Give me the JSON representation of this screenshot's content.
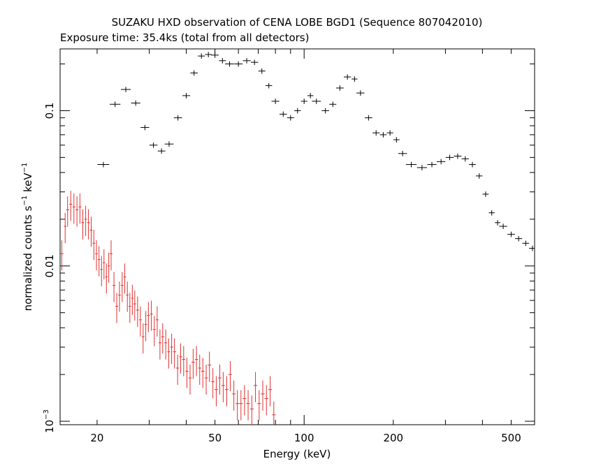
{
  "chart_data": {
    "type": "scatter",
    "title": "SUZAKU HXD observation of CENA LOBE BGD1 (Sequence 807042010)",
    "subtitle": "Exposure time: 35.4ks (total from all detectors)",
    "xlabel": "Energy (keV)",
    "ylabel_main": "normalized counts s",
    "ylabel_sup1": "−1",
    "ylabel_mid": " keV",
    "ylabel_sup2": "−1",
    "x_scale": "log",
    "y_scale": "log",
    "xlim": [
      15,
      600
    ],
    "ylim": [
      0.00095,
      0.25
    ],
    "x_ticks": [
      {
        "value": 20,
        "label": "20"
      },
      {
        "value": 50,
        "label": "50"
      },
      {
        "value": 100,
        "label": "100"
      },
      {
        "value": 200,
        "label": "200"
      },
      {
        "value": 500,
        "label": "500"
      }
    ],
    "y_ticks": [
      {
        "value": 0.001,
        "base": "10",
        "exp": "−3"
      },
      {
        "value": 0.01,
        "label": "0.01"
      },
      {
        "value": 0.1,
        "label": "0.1"
      }
    ],
    "grid": false,
    "legend": "none",
    "series": [
      {
        "color": "#000000",
        "points": [
          [
            21,
            0.045
          ],
          [
            23,
            0.11
          ],
          [
            25,
            0.137
          ],
          [
            27,
            0.112
          ],
          [
            29,
            0.078
          ],
          [
            31,
            0.06
          ],
          [
            33,
            0.055
          ],
          [
            35,
            0.061
          ],
          [
            37.5,
            0.09
          ],
          [
            40,
            0.125
          ],
          [
            42.5,
            0.175
          ],
          [
            45,
            0.225
          ],
          [
            47.5,
            0.23
          ],
          [
            50,
            0.228
          ],
          [
            53,
            0.21
          ],
          [
            56,
            0.2
          ],
          [
            60,
            0.2
          ],
          [
            64,
            0.21
          ],
          [
            68,
            0.205
          ],
          [
            72,
            0.18
          ],
          [
            76,
            0.145
          ],
          [
            80,
            0.115
          ],
          [
            85,
            0.095
          ],
          [
            90,
            0.09
          ],
          [
            95,
            0.1
          ],
          [
            100,
            0.115
          ],
          [
            105,
            0.125
          ],
          [
            110,
            0.115
          ],
          [
            118,
            0.1
          ],
          [
            125,
            0.11
          ],
          [
            132,
            0.14
          ],
          [
            140,
            0.165
          ],
          [
            148,
            0.16
          ],
          [
            155,
            0.13
          ],
          [
            165,
            0.09
          ],
          [
            175,
            0.072
          ],
          [
            185,
            0.07
          ],
          [
            195,
            0.072
          ],
          [
            205,
            0.065
          ],
          [
            215,
            0.053
          ],
          [
            230,
            0.045
          ],
          [
            250,
            0.043
          ],
          [
            270,
            0.045
          ],
          [
            290,
            0.047
          ],
          [
            310,
            0.05
          ],
          [
            330,
            0.051
          ],
          [
            350,
            0.049
          ],
          [
            370,
            0.045
          ],
          [
            390,
            0.038
          ],
          [
            410,
            0.029
          ],
          [
            430,
            0.022
          ],
          [
            450,
            0.019
          ],
          [
            470,
            0.018
          ],
          [
            500,
            0.016
          ],
          [
            530,
            0.015
          ],
          [
            560,
            0.014
          ],
          [
            590,
            0.013
          ]
        ]
      },
      {
        "color": "#e03030",
        "points": [
          [
            15.2,
            0.012
          ],
          [
            15.6,
            0.018
          ],
          [
            15.9,
            0.023
          ],
          [
            16.3,
            0.025
          ],
          [
            16.7,
            0.024
          ],
          [
            17.1,
            0.023
          ],
          [
            17.5,
            0.024
          ],
          [
            17.9,
            0.019
          ],
          [
            18.3,
            0.02
          ],
          [
            18.7,
            0.019
          ],
          [
            19.1,
            0.017
          ],
          [
            19.5,
            0.014
          ],
          [
            19.9,
            0.012
          ],
          [
            20.3,
            0.011
          ],
          [
            20.7,
            0.0095
          ],
          [
            21.1,
            0.0105
          ],
          [
            21.5,
            0.0085
          ],
          [
            21.9,
            0.01
          ],
          [
            22.3,
            0.012
          ],
          [
            22.8,
            0.0075
          ],
          [
            23.3,
            0.0055
          ],
          [
            23.8,
            0.0065
          ],
          [
            24.3,
            0.0075
          ],
          [
            24.8,
            0.0085
          ],
          [
            25.3,
            0.0065
          ],
          [
            25.8,
            0.0055
          ],
          [
            26.3,
            0.0062
          ],
          [
            26.8,
            0.0057
          ],
          [
            27.4,
            0.0052
          ],
          [
            28,
            0.0045
          ],
          [
            28.6,
            0.0035
          ],
          [
            29.2,
            0.0042
          ],
          [
            29.8,
            0.0048
          ],
          [
            30.5,
            0.0049
          ],
          [
            31.2,
            0.0039
          ],
          [
            31.9,
            0.0045
          ],
          [
            32.6,
            0.0032
          ],
          [
            33.3,
            0.0035
          ],
          [
            34.1,
            0.0032
          ],
          [
            34.9,
            0.0028
          ],
          [
            35.7,
            0.003
          ],
          [
            36.5,
            0.0028
          ],
          [
            37.4,
            0.0022
          ],
          [
            38.3,
            0.0026
          ],
          [
            39.2,
            0.0025
          ],
          [
            40.2,
            0.0021
          ],
          [
            41.2,
            0.0019
          ],
          [
            42.2,
            0.0024
          ],
          [
            43.3,
            0.0025
          ],
          [
            44.4,
            0.0022
          ],
          [
            45.5,
            0.0021
          ],
          [
            46.7,
            0.0019
          ],
          [
            47.9,
            0.0023
          ],
          [
            49.2,
            0.0018
          ],
          [
            50.5,
            0.0016
          ],
          [
            51.9,
            0.0019
          ],
          [
            53.3,
            0.0017
          ],
          [
            54.8,
            0.0016
          ],
          [
            56.3,
            0.002
          ],
          [
            57.9,
            0.0015
          ],
          [
            59.5,
            0.0013
          ],
          [
            61.2,
            0.0013
          ],
          [
            62.9,
            0.0014
          ],
          [
            64.7,
            0.0013
          ],
          [
            66.6,
            0.0012
          ],
          [
            68.5,
            0.0017
          ],
          [
            70.5,
            0.0013
          ],
          [
            72.5,
            0.0015
          ],
          [
            74.6,
            0.0014
          ],
          [
            76.8,
            0.0016
          ],
          [
            79,
            0.0011
          ]
        ]
      }
    ]
  }
}
